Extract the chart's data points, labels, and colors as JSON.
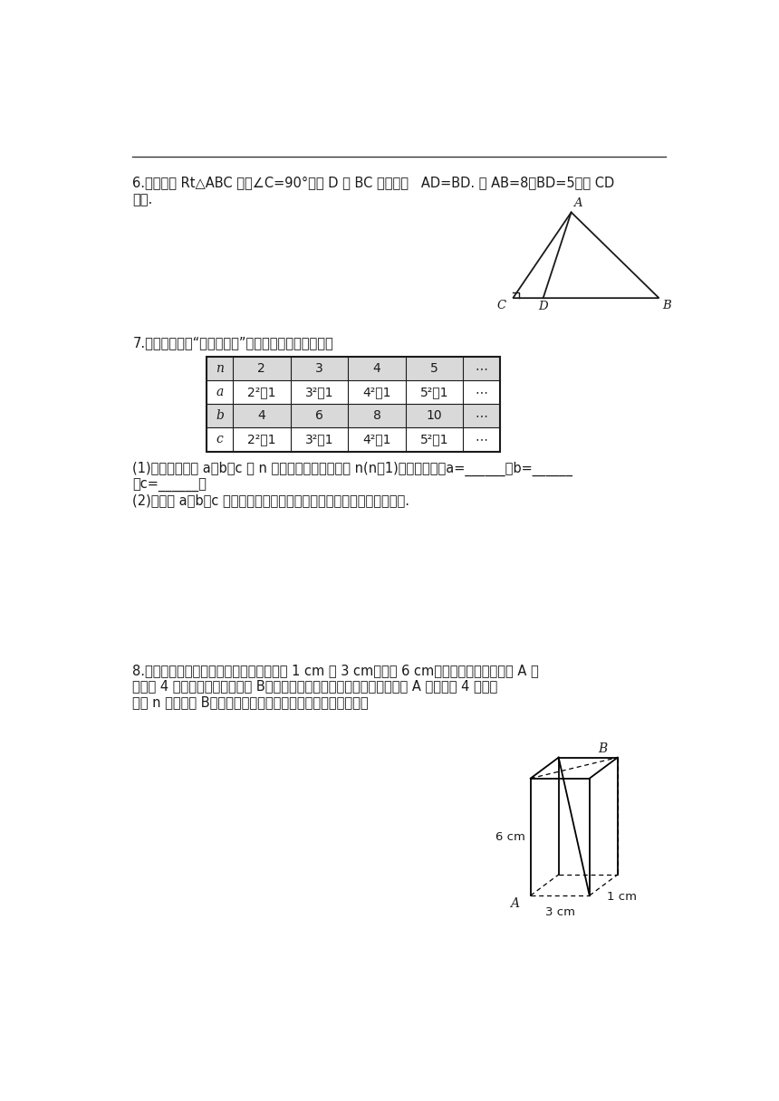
{
  "bg_color": "#ffffff",
  "q6_line1": "6.如图，在 Rt△ABC 中，∠C=90°，点 D 是 BC 上一点，   AD=BD. 若 AB=8，BD=5，求 CD",
  "q6_line2": "的长.",
  "q7_intro": "7.张老师在一次“探究性学习”课中，设计了如下数表：",
  "tbl_header": [
    "n",
    "2",
    "3",
    "4",
    "5",
    "⋯"
  ],
  "tbl_a": [
    "a",
    "2²－1",
    "3²－1",
    "4²－1",
    "5²－1",
    "⋯"
  ],
  "tbl_b": [
    "b",
    "4",
    "6",
    "8",
    "10",
    "⋯"
  ],
  "tbl_c": [
    "c",
    "2²＋1",
    "3²＋1",
    "4²＋1",
    "5²＋1",
    "⋯"
  ],
  "q7_p1": "(1)请你分别探究 a，b，c 与 n 之间的关系，并且用含 n(n＞1)的式子表示：a=______，b=______",
  "q7_p1b": "，c=______；",
  "q7_p2": "(2)猜想以 a，b，c 为边长的三角形是否为直角三角形，并证明你的猜想.",
  "q8_line1": "8.如图，长方体的底面相邻两边的长分别为 1 cm 和 3 cm，高为 6 cm，如果用一根细线从点 A 开",
  "q8_line2": "始经过 4 个侧面缠绕一圈到达点 B，那么所用细线最短需要多长？如果从点 A 开始经过 4 个侧面",
  "q8_line3": "缠绕 n 圈到达点 B，那么所用细线最短时其长度的平方是多少？",
  "font_cjk": "SimSun",
  "font_latin": "Times New Roman",
  "fontsize_body": 10.5,
  "fontsize_small": 9.5,
  "text_color": "#1a1a1a"
}
